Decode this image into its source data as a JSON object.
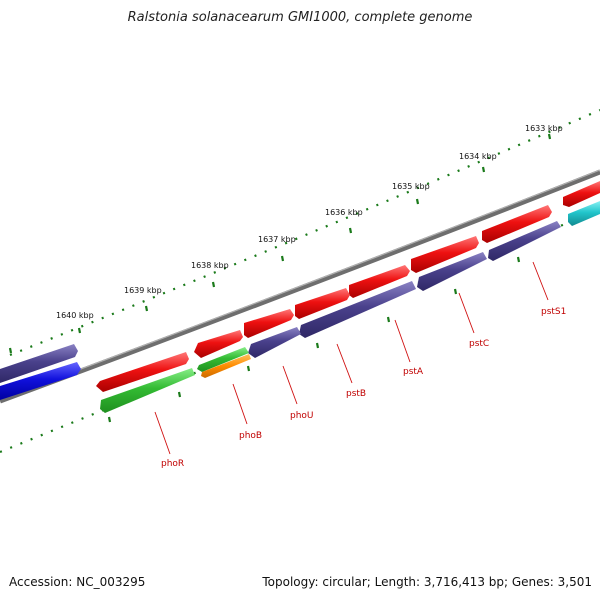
{
  "title": "Ralstonia solanacearum GMI1000, complete genome",
  "footer": {
    "accession": "Accession: NC_003295",
    "summary": "Topology: circular; Length: 3,716,413 bp; Genes: 3,501"
  },
  "colors": {
    "forward_red": "#ee1111",
    "reverse_purple": "#4a418c",
    "green": "#33bb33",
    "orange": "#ff8c00",
    "blue": "#1111dd",
    "cyan": "#22c6cc",
    "backbone": "#777777",
    "tick": "#1a7a1a",
    "label_red": "#c00000"
  },
  "ruler": {
    "labels": [
      "1633 kbp",
      "1634 kbp",
      "1635 kbp",
      "1636 kbp",
      "1637 kbp",
      "1638 kbp",
      "1639 kbp",
      "1640 kbp"
    ]
  },
  "genes": {
    "labels": [
      "pstS1",
      "pstC",
      "pstA",
      "pstB",
      "phoU",
      "phoB",
      "phoR"
    ]
  }
}
